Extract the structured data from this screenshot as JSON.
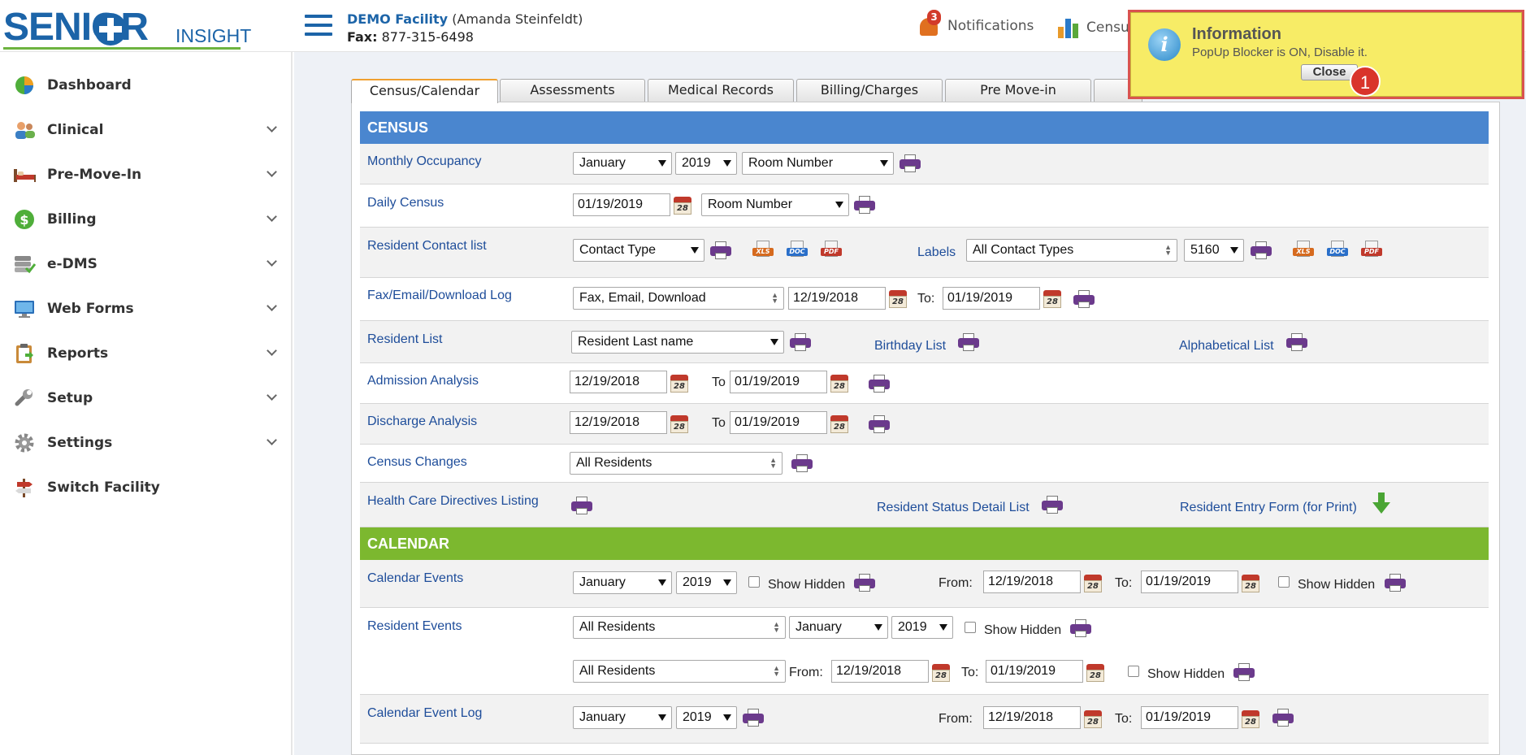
{
  "app": {
    "logo_main": "SENIOR",
    "logo_sub": "INSIGHT"
  },
  "header": {
    "facility_name": "DEMO Facility",
    "facility_person": "(Amanda Steinfeldt)",
    "fax_label": "Fax:",
    "fax_number": "877-315-6498",
    "notifications_label": "Notifications",
    "notifications_count": "3",
    "census_label": "Census"
  },
  "sidebar": {
    "items": [
      {
        "label": "Dashboard",
        "icon": "pie-chart-icon",
        "chevron": false
      },
      {
        "label": "Clinical",
        "icon": "users-icon",
        "chevron": true
      },
      {
        "label": "Pre-Move-In",
        "icon": "bed-icon",
        "chevron": true
      },
      {
        "label": "Billing",
        "icon": "dollar-icon",
        "chevron": true
      },
      {
        "label": "e-DMS",
        "icon": "database-icon",
        "chevron": true
      },
      {
        "label": "Web Forms",
        "icon": "monitor-icon",
        "chevron": true
      },
      {
        "label": "Reports",
        "icon": "clipboard-icon",
        "chevron": true
      },
      {
        "label": "Setup",
        "icon": "wrench-icon",
        "chevron": true
      },
      {
        "label": "Settings",
        "icon": "gear-icon",
        "chevron": true
      },
      {
        "label": "Switch Facility",
        "icon": "signpost-icon",
        "chevron": false
      }
    ]
  },
  "tabs": [
    "Census/Calendar",
    "Assessments",
    "Medical Records",
    "Billing/Charges",
    "Pre Move-in"
  ],
  "census": {
    "title": "CENSUS",
    "monthly_occupancy": {
      "label": "Monthly Occupancy",
      "month": "January",
      "year": "2019",
      "sort": "Room Number"
    },
    "daily_census": {
      "label": "Daily Census",
      "date": "01/19/2019",
      "sort": "Room Number"
    },
    "contact_list": {
      "label": "Resident Contact list",
      "contact_type": "Contact Type",
      "labels_label": "Labels",
      "labels_type": "All Contact Types",
      "label_code": "5160"
    },
    "fax_log": {
      "label": "Fax/Email/Download Log",
      "type": "Fax, Email, Download",
      "from": "12/19/2018",
      "to_label": "To:",
      "to": "01/19/2019"
    },
    "resident_list": {
      "label": "Resident List",
      "sort": "Resident Last name",
      "birthday": "Birthday List",
      "alphabetical": "Alphabetical List"
    },
    "admission": {
      "label": "Admission Analysis",
      "from": "12/19/2018",
      "to_label": "To",
      "to": "01/19/2019"
    },
    "discharge": {
      "label": "Discharge Analysis",
      "from": "12/19/2018",
      "to_label": "To",
      "to": "01/19/2019"
    },
    "census_changes": {
      "label": "Census Changes",
      "filter": "All Residents"
    },
    "health_care": {
      "label": "Health Care Directives Listing",
      "status_detail": "Resident Status Detail List",
      "entry_form": "Resident Entry Form (for Print)"
    }
  },
  "calendar": {
    "title": "CALENDAR",
    "events": {
      "label": "Calendar Events",
      "month": "January",
      "year": "2019",
      "show_hidden": "Show Hidden",
      "from_label": "From:",
      "from": "12/19/2018",
      "to_label": "To:",
      "to": "01/19/2019"
    },
    "resident_events": {
      "label": "Resident Events",
      "filter1": "All Residents",
      "month": "January",
      "year": "2019",
      "show_hidden": "Show Hidden",
      "filter2": "All Residents",
      "from_label": "From:",
      "from": "12/19/2018",
      "to_label": "To:",
      "to": "01/19/2019"
    },
    "event_log": {
      "label": "Calendar Event Log",
      "month": "January",
      "year": "2019",
      "from_label": "From:",
      "from": "12/19/2018",
      "to_label": "To:",
      "to": "01/19/2019"
    }
  },
  "popup": {
    "title": "Information",
    "message": "PopUp Blocker is ON, Disable it.",
    "close_label": "Close",
    "badge": "1"
  },
  "icons": {
    "calendar_day": "28",
    "xls": "XLS",
    "doc": "DOC",
    "pdf": "PDF"
  },
  "colors": {
    "census_header": "#4a86cf",
    "calendar_header": "#7cb82f",
    "label_blue": "#1e4d9a",
    "brand_blue": "#1c64a8",
    "popup_bg": "#f7ec66"
  }
}
